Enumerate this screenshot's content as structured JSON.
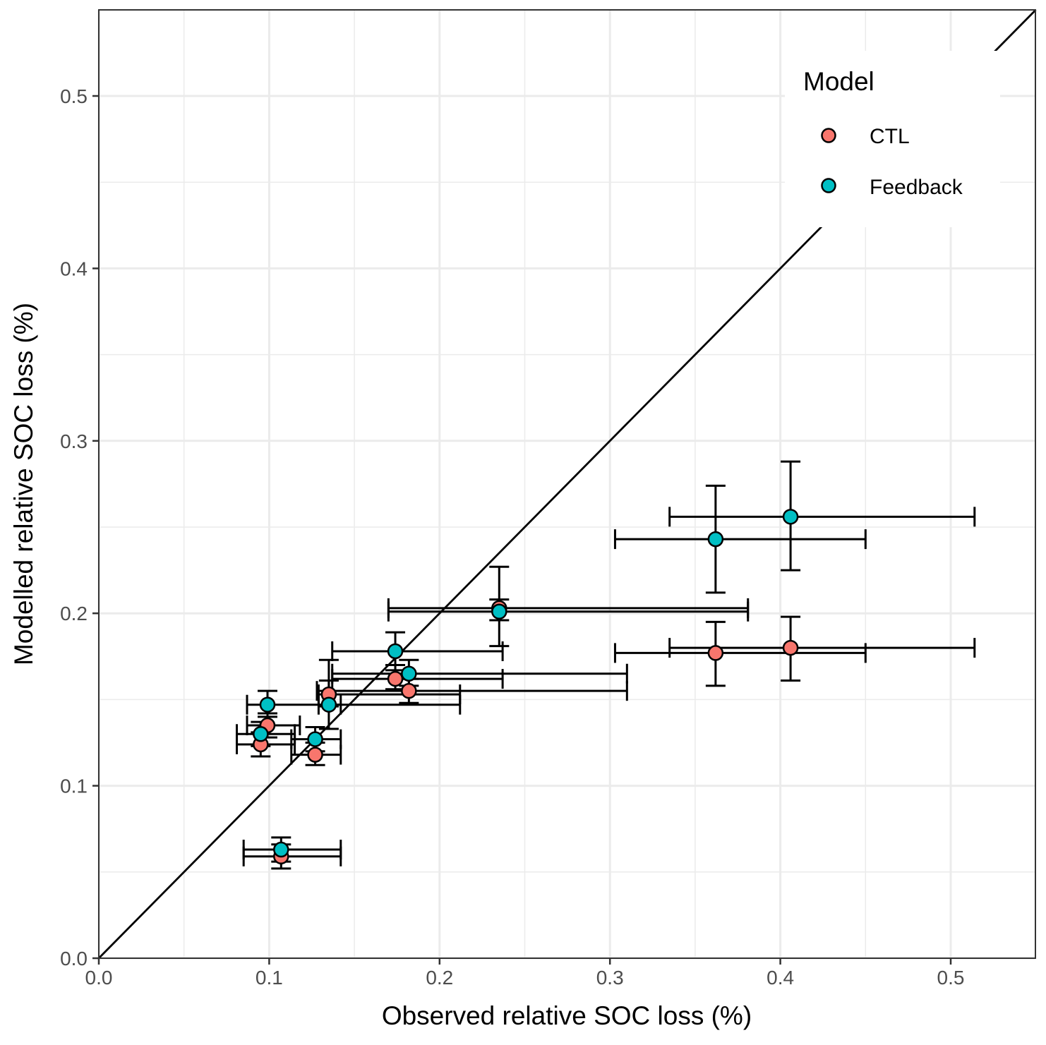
{
  "chart_data": {
    "type": "scatter",
    "title": "",
    "xlabel": "Observed relative SOC loss (%)",
    "ylabel": "Modelled relative SOC loss (%)",
    "xlim": [
      0,
      0.55
    ],
    "ylim": [
      0,
      0.55
    ],
    "xticks": [
      0.0,
      0.1,
      0.2,
      0.3,
      0.4,
      0.5
    ],
    "yticks": [
      0.0,
      0.1,
      0.2,
      0.3,
      0.4,
      0.5
    ],
    "xtick_labels": [
      "0.0",
      "0.1",
      "0.2",
      "0.3",
      "0.4",
      "0.5"
    ],
    "ytick_labels": [
      "0.0",
      "0.1",
      "0.2",
      "0.3",
      "0.4",
      "0.5"
    ],
    "grid": true,
    "reference_line": "1:1 line (y = x)",
    "legend": {
      "title": "Model",
      "placement": "top-right"
    },
    "series": [
      {
        "name": "CTL",
        "color": "#F8766D",
        "points": [
          {
            "x": 0.107,
            "y": 0.059,
            "xmin": 0.085,
            "xmax": 0.142,
            "ymin": 0.052,
            "ymax": 0.066
          },
          {
            "x": 0.095,
            "y": 0.124,
            "xmin": 0.081,
            "xmax": 0.115,
            "ymin": 0.117,
            "ymax": 0.131
          },
          {
            "x": 0.099,
            "y": 0.135,
            "xmin": 0.087,
            "xmax": 0.118,
            "ymin": 0.128,
            "ymax": 0.142
          },
          {
            "x": 0.127,
            "y": 0.118,
            "xmin": 0.113,
            "xmax": 0.142,
            "ymin": 0.112,
            "ymax": 0.125
          },
          {
            "x": 0.135,
            "y": 0.153,
            "xmin": 0.129,
            "xmax": 0.212,
            "ymin": 0.146,
            "ymax": 0.173
          },
          {
            "x": 0.174,
            "y": 0.162,
            "xmin": 0.137,
            "xmax": 0.237,
            "ymin": 0.156,
            "ymax": 0.17
          },
          {
            "x": 0.182,
            "y": 0.155,
            "xmin": 0.128,
            "xmax": 0.31,
            "ymin": 0.148,
            "ymax": 0.162
          },
          {
            "x": 0.235,
            "y": 0.203,
            "xmin": 0.17,
            "xmax": 0.381,
            "ymin": 0.181,
            "ymax": 0.227
          },
          {
            "x": 0.362,
            "y": 0.177,
            "xmin": 0.303,
            "xmax": 0.45,
            "ymin": 0.158,
            "ymax": 0.195
          },
          {
            "x": 0.406,
            "y": 0.18,
            "xmin": 0.335,
            "xmax": 0.514,
            "ymin": 0.161,
            "ymax": 0.198
          }
        ]
      },
      {
        "name": "Feedback",
        "color": "#00BFC4",
        "points": [
          {
            "x": 0.107,
            "y": 0.063,
            "xmin": 0.085,
            "xmax": 0.142,
            "ymin": 0.056,
            "ymax": 0.07
          },
          {
            "x": 0.095,
            "y": 0.13,
            "xmin": 0.081,
            "xmax": 0.115,
            "ymin": 0.123,
            "ymax": 0.137
          },
          {
            "x": 0.099,
            "y": 0.147,
            "xmin": 0.087,
            "xmax": 0.142,
            "ymin": 0.14,
            "ymax": 0.155
          },
          {
            "x": 0.127,
            "y": 0.127,
            "xmin": 0.113,
            "xmax": 0.142,
            "ymin": 0.12,
            "ymax": 0.134
          },
          {
            "x": 0.135,
            "y": 0.147,
            "xmin": 0.129,
            "xmax": 0.212,
            "ymin": 0.133,
            "ymax": 0.161
          },
          {
            "x": 0.174,
            "y": 0.178,
            "xmin": 0.137,
            "xmax": 0.237,
            "ymin": 0.167,
            "ymax": 0.189
          },
          {
            "x": 0.182,
            "y": 0.165,
            "xmin": 0.137,
            "xmax": 0.31,
            "ymin": 0.158,
            "ymax": 0.173
          },
          {
            "x": 0.235,
            "y": 0.201,
            "xmin": 0.17,
            "xmax": 0.381,
            "ymin": 0.196,
            "ymax": 0.208
          },
          {
            "x": 0.362,
            "y": 0.243,
            "xmin": 0.303,
            "xmax": 0.45,
            "ymin": 0.212,
            "ymax": 0.274
          },
          {
            "x": 0.406,
            "y": 0.256,
            "xmin": 0.335,
            "xmax": 0.514,
            "ymin": 0.225,
            "ymax": 0.288
          }
        ]
      }
    ]
  }
}
